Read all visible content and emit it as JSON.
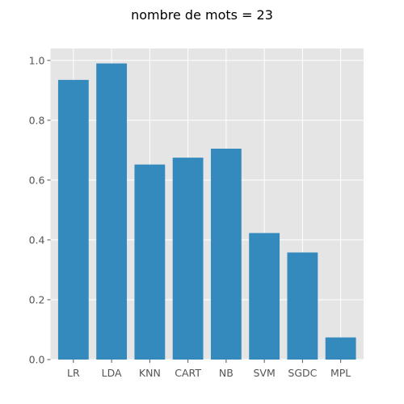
{
  "chart_data": {
    "type": "bar",
    "title": "nombre de mots = 23",
    "categories": [
      "LR",
      "LDA",
      "KNN",
      "CART",
      "NB",
      "SVM",
      "SGDC",
      "MPL"
    ],
    "values": [
      0.935,
      0.99,
      0.652,
      0.675,
      0.705,
      0.423,
      0.358,
      0.074
    ],
    "ylim": [
      0,
      1.04
    ],
    "yticks": [
      0.0,
      0.2,
      0.4,
      0.6,
      0.8,
      1.0
    ],
    "ytick_labels": [
      "0.0",
      "0.2",
      "0.4",
      "0.6",
      "0.8",
      "1.0"
    ],
    "grid": true,
    "xlabel": "",
    "ylabel": "",
    "colors": {
      "bar": "#348abd",
      "plot_background": "#e5e5e5",
      "grid": "#ffffff",
      "tick": "#555555"
    }
  }
}
